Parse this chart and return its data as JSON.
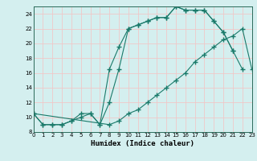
{
  "xlabel": "Humidex (Indice chaleur)",
  "background_color": "#d4efef",
  "grid_color": "#f0c8c8",
  "line_color": "#1a7a6a",
  "x_min": 0,
  "x_max": 23,
  "y_min": 8,
  "y_max": 25,
  "series1_x": [
    0,
    1,
    2,
    3,
    4,
    5,
    6,
    7,
    8,
    9,
    10,
    11,
    12,
    13,
    14,
    15,
    16,
    17,
    18,
    19,
    20,
    21
  ],
  "series1_y": [
    10.5,
    9.0,
    9.0,
    9.0,
    9.5,
    10.5,
    10.5,
    9.0,
    12.0,
    16.5,
    22.0,
    22.5,
    23.0,
    23.5,
    23.5,
    25.0,
    24.5,
    24.5,
    24.5,
    23.0,
    21.5,
    19.0
  ],
  "series2_x": [
    0,
    1,
    2,
    3,
    4,
    5,
    6,
    7,
    8,
    9,
    10,
    11,
    12,
    13,
    14,
    15,
    16,
    17,
    18,
    19,
    20,
    21,
    22
  ],
  "series2_y": [
    10.5,
    9.0,
    9.0,
    9.0,
    9.5,
    10.0,
    10.5,
    9.0,
    16.5,
    19.5,
    22.0,
    22.5,
    23.0,
    23.5,
    23.5,
    25.0,
    24.5,
    24.5,
    24.5,
    23.0,
    21.5,
    19.0,
    16.5
  ],
  "series3_x": [
    0,
    8,
    9,
    10,
    11,
    12,
    13,
    14,
    15,
    16,
    17,
    18,
    19,
    20,
    21,
    22,
    23
  ],
  "series3_y": [
    10.5,
    9.0,
    9.5,
    10.5,
    11.0,
    12.0,
    13.0,
    14.0,
    15.0,
    16.0,
    17.5,
    18.5,
    19.5,
    20.5,
    21.0,
    22.0,
    16.5
  ]
}
